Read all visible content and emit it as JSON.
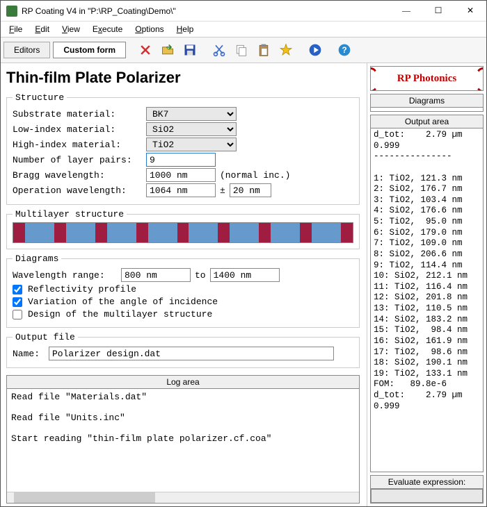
{
  "window": {
    "title": "RP Coating V4 in \"P:\\RP_Coating\\Demo\\\""
  },
  "menus": [
    "File",
    "Edit",
    "View",
    "Execute",
    "Options",
    "Help"
  ],
  "tabs": {
    "editors": "Editors",
    "custom": "Custom form"
  },
  "heading": "Thin-film Plate Polarizer",
  "structure": {
    "legend": "Structure",
    "substrate_lbl": "Substrate material:",
    "substrate_val": "BK7",
    "low_lbl": "Low-index material:",
    "low_val": "SiO2",
    "high_lbl": "High-index material:",
    "high_val": "TiO2",
    "pairs_lbl": "Number of layer pairs:",
    "pairs_val": "9",
    "bragg_lbl": "Bragg wavelength:",
    "bragg_val": "1000 nm",
    "bragg_note": "(normal inc.)",
    "op_lbl": "Operation wavelength:",
    "op_val": "1064 nm",
    "pm": "±",
    "tol_val": "20 nm"
  },
  "multilayer": {
    "legend": "Multilayer structure",
    "colors": {
      "a": "#a01d42",
      "b": "#6699cc"
    },
    "widths": [
      4,
      10,
      4,
      10,
      4,
      10,
      4,
      10,
      4,
      10,
      4,
      10,
      4,
      10,
      4,
      10,
      4
    ]
  },
  "diagrams": {
    "legend": "Diagrams",
    "range_lbl": "Wavelength range:",
    "from_val": "800 nm",
    "to_lbl": "to",
    "to_val": "1400 nm",
    "opt1": "Reflectivity profile",
    "opt1_chk": true,
    "opt2": "Variation of the angle of incidence",
    "opt2_chk": true,
    "opt3": "Design of the multilayer structure",
    "opt3_chk": false
  },
  "outfile": {
    "legend": "Output file",
    "name_lbl": "Name:",
    "name_val": "Polarizer design.dat"
  },
  "log": {
    "title": "Log area",
    "body": "Read file \"Materials.dat\"\n\nRead file \"Units.inc\"\n\nStart reading \"thin-film plate polarizer.cf.coa\""
  },
  "right": {
    "logo": "RP Photonics",
    "diagrams_title": "Diagrams",
    "output_title": "Output area",
    "output_body": "d_tot:    2.79 µm\n0.999\n---------------\n\n1: TiO2, 121.3 nm\n2: SiO2, 176.7 nm\n3: TiO2, 103.4 nm\n4: SiO2, 176.6 nm\n5: TiO2,  95.0 nm\n6: SiO2, 179.0 nm\n7: TiO2, 109.0 nm\n8: SiO2, 206.6 nm\n9: TiO2, 114.4 nm\n10: SiO2, 212.1 nm\n11: TiO2, 116.4 nm\n12: SiO2, 201.8 nm\n13: TiO2, 110.5 nm\n14: SiO2, 183.2 nm\n15: TiO2,  98.4 nm\n16: SiO2, 161.9 nm\n17: TiO2,  98.6 nm\n18: SiO2, 190.1 nm\n19: TiO2, 133.1 nm\nFOM:   89.8e-6\nd_tot:    2.79 µm\n0.999",
    "eval_title": "Evaluate expression:"
  }
}
